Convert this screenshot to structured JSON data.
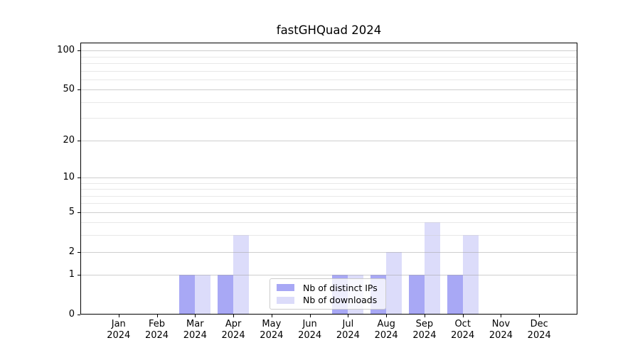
{
  "chart_data": {
    "type": "bar",
    "title": "fastGHQuad 2024",
    "categories": [
      "Jan",
      "Feb",
      "Mar",
      "Apr",
      "May",
      "Jun",
      "Jul",
      "Aug",
      "Sep",
      "Oct",
      "Nov",
      "Dec"
    ],
    "x_year_label": "2024",
    "series": [
      {
        "name": "Nb of distinct IPs",
        "color": "#a8a8f5",
        "values": [
          0,
          0,
          1,
          1,
          0,
          0,
          1,
          1,
          1,
          1,
          0,
          0
        ]
      },
      {
        "name": "Nb of downloads",
        "color": "#dcdcfa",
        "values": [
          0,
          0,
          1,
          3,
          0,
          0,
          1,
          2,
          4,
          3,
          0,
          0
        ]
      }
    ],
    "xlabel": "",
    "ylabel": "",
    "y_scale": "log1p",
    "y_axis_ticks": [
      0,
      1,
      2,
      5,
      10,
      20,
      50,
      100
    ],
    "y_minor_gridlines": [
      3,
      4,
      6,
      7,
      8,
      9,
      30,
      40,
      60,
      70,
      80,
      90
    ],
    "ylim": [
      0,
      115
    ],
    "grid": true,
    "legend_position": "lower center"
  }
}
